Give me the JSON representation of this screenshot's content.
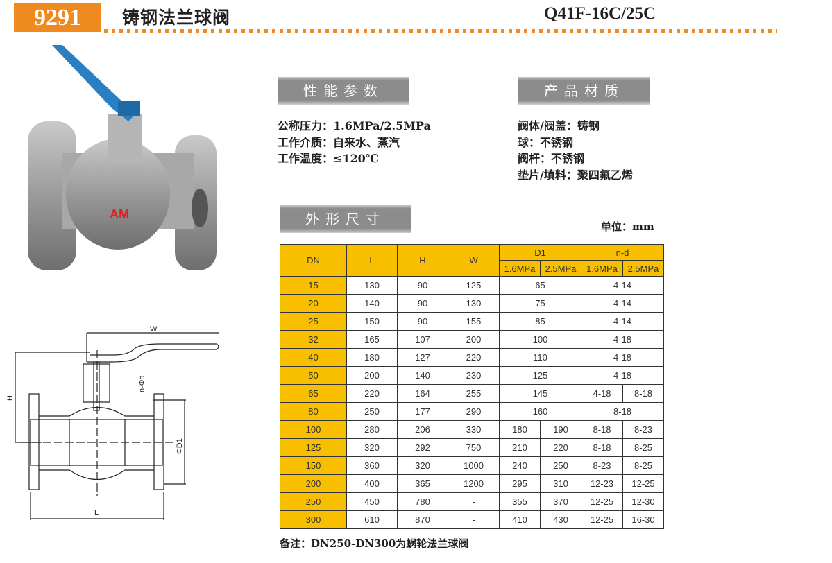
{
  "header": {
    "code": "9291",
    "title": "铸钢法兰球阀",
    "model": "Q41F-16C/25C",
    "accent": "#ef8a1f"
  },
  "performance": {
    "heading": "性能参数",
    "lines": [
      "公称压力：1.6MPa/2.5MPa",
      "工作介质：自来水、蒸汽",
      "工作温度：≤120℃"
    ]
  },
  "material": {
    "heading": "产品材质",
    "lines": [
      "阀体/阀盖：铸钢",
      "球：不锈钢",
      "阀杆：不锈钢",
      "垫片/填料：聚四氟乙烯"
    ]
  },
  "dimensions": {
    "heading": "外形尺寸",
    "unit": "单位：mm",
    "headers": {
      "dn": "DN",
      "l": "L",
      "h": "H",
      "w": "W",
      "d1": "D1",
      "nd": "n-d",
      "p1": "1.6MPa",
      "p2": "2.5MPa"
    },
    "rows": [
      {
        "dn": "15",
        "l": "130",
        "h": "90",
        "w": "125",
        "d1": [
          "65"
        ],
        "nd": [
          "4-14"
        ]
      },
      {
        "dn": "20",
        "l": "140",
        "h": "90",
        "w": "130",
        "d1": [
          "75"
        ],
        "nd": [
          "4-14"
        ]
      },
      {
        "dn": "25",
        "l": "150",
        "h": "90",
        "w": "155",
        "d1": [
          "85"
        ],
        "nd": [
          "4-14"
        ]
      },
      {
        "dn": "32",
        "l": "165",
        "h": "107",
        "w": "200",
        "d1": [
          "100"
        ],
        "nd": [
          "4-18"
        ]
      },
      {
        "dn": "40",
        "l": "180",
        "h": "127",
        "w": "220",
        "d1": [
          "110"
        ],
        "nd": [
          "4-18"
        ]
      },
      {
        "dn": "50",
        "l": "200",
        "h": "140",
        "w": "230",
        "d1": [
          "125"
        ],
        "nd": [
          "4-18"
        ]
      },
      {
        "dn": "65",
        "l": "220",
        "h": "164",
        "w": "255",
        "d1": [
          "145"
        ],
        "nd": [
          "4-18",
          "8-18"
        ]
      },
      {
        "dn": "80",
        "l": "250",
        "h": "177",
        "w": "290",
        "d1": [
          "160"
        ],
        "nd": [
          "8-18"
        ]
      },
      {
        "dn": "100",
        "l": "280",
        "h": "206",
        "w": "330",
        "d1": [
          "180",
          "190"
        ],
        "nd": [
          "8-18",
          "8-23"
        ]
      },
      {
        "dn": "125",
        "l": "320",
        "h": "292",
        "w": "750",
        "d1": [
          "210",
          "220"
        ],
        "nd": [
          "8-18",
          "8-25"
        ]
      },
      {
        "dn": "150",
        "l": "360",
        "h": "320",
        "w": "1000",
        "d1": [
          "240",
          "250"
        ],
        "nd": [
          "8-23",
          "8-25"
        ]
      },
      {
        "dn": "200",
        "l": "400",
        "h": "365",
        "w": "1200",
        "d1": [
          "295",
          "310"
        ],
        "nd": [
          "12-23",
          "12-25"
        ]
      },
      {
        "dn": "250",
        "l": "450",
        "h": "780",
        "w": "-",
        "d1": [
          "355",
          "370"
        ],
        "nd": [
          "12-25",
          "12-30"
        ]
      },
      {
        "dn": "300",
        "l": "610",
        "h": "870",
        "w": "-",
        "d1": [
          "410",
          "430"
        ],
        "nd": [
          "12-25",
          "16-30"
        ]
      }
    ],
    "note": "备注：DN250-DN300为蜗轮法兰球阀"
  },
  "drawing": {
    "labels": {
      "w": "W",
      "h": "H",
      "l": "L",
      "nd": "n-Φd",
      "d1": "ΦD1"
    }
  },
  "photo": {
    "logo": "AM"
  }
}
